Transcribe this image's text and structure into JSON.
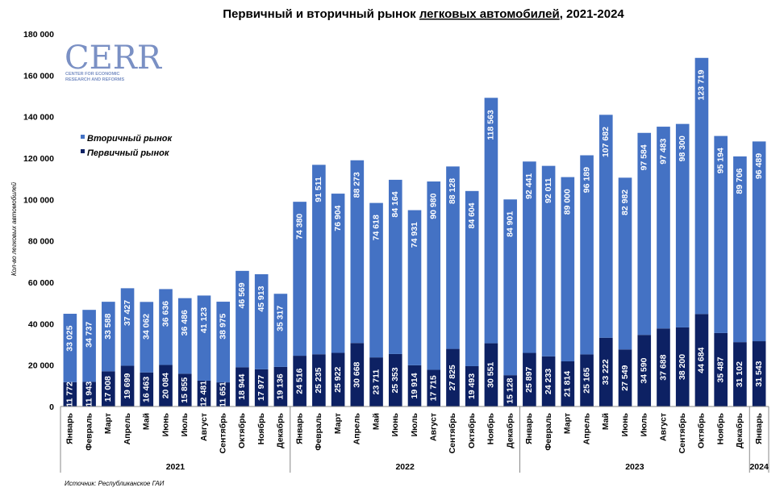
{
  "chart_data": {
    "type": "bar",
    "stacked": true,
    "title_parts": [
      "Первичный и вторичный рынок ",
      "легковых автомобилей",
      ", 2021-2024"
    ],
    "ylabel": "Кол-во легковых автомобилей",
    "source": "Источник: Республиканское ГАИ",
    "ylim": [
      0,
      180000
    ],
    "y_ticks": [
      "0",
      "20 000",
      "40 000",
      "60 000",
      "80 000",
      "100 000",
      "120 000",
      "140 000",
      "160 000",
      "180 000"
    ],
    "grid": false,
    "legend_position": "top-left",
    "logo": {
      "main": "CERR",
      "line1": "CENTER FOR ECONOMIC",
      "line2": "RESEARCH AND REFORMS"
    },
    "categories": [
      "Январь",
      "Февраль",
      "Март",
      "Апрель",
      "Май",
      "Июнь",
      "Июль",
      "Август",
      "Сентябрь",
      "Октябрь",
      "Ноябрь",
      "Декабрь",
      "Январь",
      "Февраль",
      "Март",
      "Апрель",
      "Май",
      "Июнь",
      "Июль",
      "Август",
      "Сентябрь",
      "Октябрь",
      "Ноябрь",
      "Декабрь",
      "Январь",
      "Февраль",
      "Март",
      "Апрель",
      "Май",
      "Июнь",
      "Июль",
      "Август",
      "Сентябрь",
      "Октябрь",
      "Ноябрь",
      "Декабрь",
      "Январь"
    ],
    "years": [
      {
        "label": "2021",
        "count": 12
      },
      {
        "label": "2022",
        "count": 12
      },
      {
        "label": "2023",
        "count": 12
      },
      {
        "label": "2024",
        "count": 1
      }
    ],
    "series": [
      {
        "name": "Первичный рынок",
        "color": "#0d2163",
        "values": [
          11772,
          11943,
          17008,
          19699,
          16463,
          20084,
          15855,
          12481,
          11651,
          18944,
          17977,
          19136,
          24516,
          25235,
          25922,
          30668,
          23711,
          25353,
          19914,
          17715,
          27825,
          19493,
          30551,
          15128,
          25897,
          24233,
          21814,
          25165,
          33222,
          27549,
          34590,
          37688,
          38200,
          44684,
          35487,
          31102,
          31543
        ],
        "labels": [
          "11 772",
          "11 943",
          "17 008",
          "19 699",
          "16 463",
          "20 084",
          "15 855",
          "12 481",
          "11 651",
          "18 944",
          "17 977",
          "19 136",
          "24 516",
          "25 235",
          "25 922",
          "30 668",
          "23 711",
          "25 353",
          "19 914",
          "17 715",
          "27 825",
          "19 493",
          "30 551",
          "15 128",
          "25 897",
          "24 233",
          "21 814",
          "25 165",
          "33 222",
          "27 549",
          "34 590",
          "37 688",
          "38 200",
          "44 684",
          "35 487",
          "31 102",
          "31 543"
        ]
      },
      {
        "name": "Вторичный рынок",
        "color": "#4472c4",
        "values": [
          33025,
          34737,
          33588,
          37427,
          34062,
          36636,
          36486,
          41123,
          38975,
          46569,
          45913,
          35317,
          74380,
          91511,
          76904,
          88273,
          74618,
          84164,
          74931,
          90980,
          88128,
          84604,
          118563,
          84901,
          92441,
          92011,
          89000,
          96189,
          107682,
          82982,
          97584,
          97483,
          98300,
          123719,
          95194,
          89706,
          96489
        ],
        "labels": [
          "33 025",
          "34 737",
          "33 588",
          "37 427",
          "34 062",
          "36 636",
          "36 486",
          "41 123",
          "38 975",
          "46 569",
          "45 913",
          "35 317",
          "74 380",
          "91 511",
          "76 904",
          "88 273",
          "74 618",
          "84 164",
          "74 931",
          "90 980",
          "88 128",
          "84 604",
          "118 563",
          "84 901",
          "92 441",
          "92 011",
          "89 000",
          "96 189",
          "107 682",
          "82 982",
          "97 584",
          "97 483",
          "98 300",
          "123 719",
          "95 194",
          "89 706",
          "96 489"
        ]
      }
    ]
  }
}
